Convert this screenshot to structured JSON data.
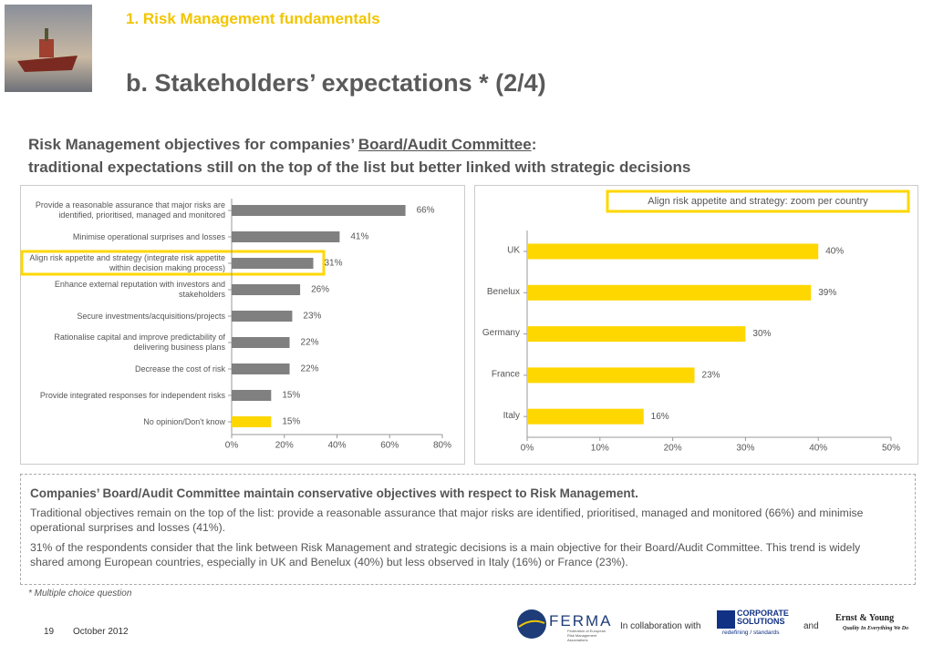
{
  "header": {
    "section": "1.  Risk Management fundamentals",
    "title": "b. Stakeholders’ expectations * (2/4)"
  },
  "subtitle": {
    "line1_before": "Risk Management objectives for companies’ ",
    "line1_link": "Board/Audit Committee",
    "line1_after": ":",
    "line2": "traditional expectations still on the top of the list but better linked with strategic decisions"
  },
  "chart_data": [
    {
      "type": "hbar",
      "categories": [
        "Provide a reasonable assurance that major risks are identified, prioritised, managed and monitored",
        "Minimise operational surprises and losses",
        "Align risk appetite and strategy (integrate risk appetite within decision making process)",
        "Enhance external reputation with investors and stakeholders",
        "Secure investments/acquisitions/projects",
        "Rationalise capital and improve predictability of delivering business plans",
        "Decrease the cost of risk",
        "Provide integrated responses for independent risks",
        "No opinion/Don't know"
      ],
      "values": [
        66,
        41,
        31,
        26,
        23,
        22,
        22,
        15,
        15
      ],
      "value_labels": [
        "66%",
        "41%",
        "31%",
        "26%",
        "23%",
        "22%",
        "22%",
        "15%",
        "15%"
      ],
      "colors": [
        "#808080",
        "#808080",
        "#808080",
        "#808080",
        "#808080",
        "#808080",
        "#808080",
        "#808080",
        "#ffd700"
      ],
      "xlim": [
        0,
        80
      ],
      "xticks": [
        {
          "value": 0,
          "label": "0%"
        },
        {
          "value": 20,
          "label": "20%"
        },
        {
          "value": 40,
          "label": "40%"
        },
        {
          "value": 60,
          "label": "60%"
        },
        {
          "value": 80,
          "label": "80%"
        }
      ]
    },
    {
      "type": "hbar",
      "title": "Align risk appetite and strategy: zoom per country",
      "categories": [
        "UK",
        "Benelux",
        "Germany",
        "France",
        "Italy"
      ],
      "values": [
        40,
        39,
        30,
        23,
        16
      ],
      "value_labels": [
        "40%",
        "39%",
        "30%",
        "23%",
        "16%"
      ],
      "color": "#ffd700",
      "xlim": [
        0,
        50
      ],
      "xticks": [
        {
          "value": 0,
          "label": "0%"
        },
        {
          "value": 10,
          "label": "10%"
        },
        {
          "value": 20,
          "label": "20%"
        },
        {
          "value": 30,
          "label": "30%"
        },
        {
          "value": 40,
          "label": "40%"
        },
        {
          "value": 50,
          "label": "50%"
        }
      ]
    }
  ],
  "summary": {
    "title": "Companies’ Board/Audit Committee maintain conservative objectives with respect to Risk Management.",
    "paragraphs": [
      "Traditional objectives remain on the top of the list: provide a reasonable assurance that major risks are identified, prioritised, managed and monitored (66%) and minimise operational surprises and losses (41%).",
      "31% of the respondents consider that the link between Risk Management and strategic decisions is a main objective for their Board/Audit Committee. This trend is widely shared among European countries, especially in UK and Benelux (40%) but less observed in Italy (16%) or France (23%)."
    ]
  },
  "footnote": "* Multiple choice question",
  "footer": {
    "page": "19",
    "date": "October 2012",
    "collaboration": "In collaboration with",
    "and": "and",
    "ferma": "FERMA",
    "ferma_sub": "Federation of European Risk Management Associations",
    "axa_line1": "CORPORATE",
    "axa_line2": "SOLUTIONS",
    "axa_tag": "redefining / standards",
    "ey": "Ernst & Young",
    "ey_tag": "Quality In Everything We Do"
  }
}
